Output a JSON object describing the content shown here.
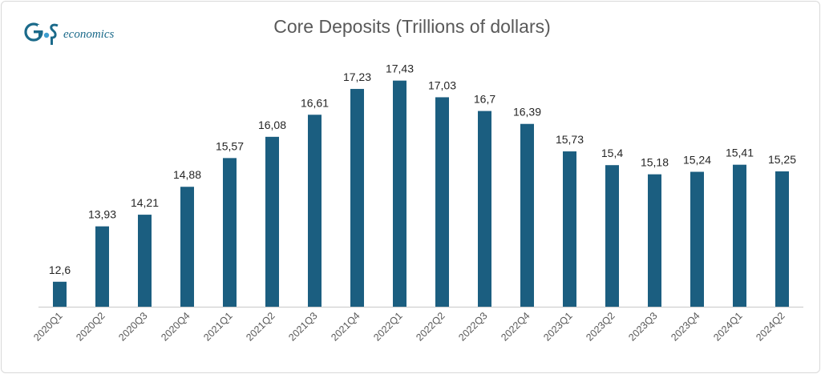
{
  "logo": {
    "mark": "GnS",
    "text": "economics"
  },
  "chart_data": {
    "type": "bar",
    "title": "Core Deposits (Trillions of dollars)",
    "xlabel": "",
    "ylabel": "",
    "categories": [
      "2020Q1",
      "2020Q2",
      "2020Q3",
      "2020Q4",
      "2021Q1",
      "2021Q2",
      "2021Q3",
      "2021Q4",
      "2022Q1",
      "2022Q2",
      "2022Q3",
      "2022Q4",
      "2023Q1",
      "2023Q2",
      "2023Q3",
      "2023Q4",
      "2024Q1",
      "2024Q2"
    ],
    "values": [
      12.6,
      13.93,
      14.21,
      14.88,
      15.57,
      16.08,
      16.61,
      17.23,
      17.43,
      17.03,
      16.7,
      16.39,
      15.73,
      15.4,
      15.18,
      15.24,
      15.41,
      15.25
    ],
    "data_labels": [
      "12,6",
      "13,93",
      "14,21",
      "14,88",
      "15,57",
      "16,08",
      "16,61",
      "17,23",
      "17,43",
      "17,03",
      "16,7",
      "16,39",
      "15,73",
      "15,4",
      "15,18",
      "15,24",
      "15,41",
      "15,25"
    ],
    "ylim": [
      12,
      18
    ],
    "grid": false,
    "legend": "none",
    "bar_color": "#1b5e80",
    "axis_color": "#d0d0d0",
    "label_color": "#262626",
    "tick_color": "#595959"
  }
}
